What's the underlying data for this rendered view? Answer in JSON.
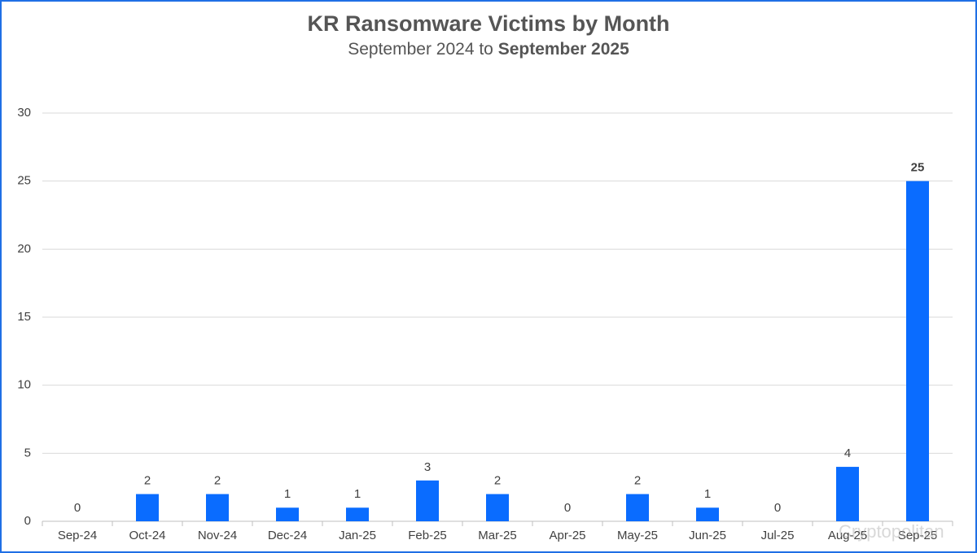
{
  "chart_data": {
    "type": "bar",
    "title": "KR Ransomware Victims by Month",
    "subtitle": [
      "September 2024 to",
      "September 2025"
    ],
    "categories": [
      "Sep-24",
      "Oct-24",
      "Nov-24",
      "Dec-24",
      "Jan-25",
      "Feb-25",
      "Mar-25",
      "Apr-25",
      "May-25",
      "Jun-25",
      "Jul-25",
      "Aug-25",
      "Sep-25"
    ],
    "values": [
      0,
      2,
      2,
      1,
      1,
      3,
      2,
      0,
      2,
      1,
      0,
      4,
      25
    ],
    "color": "#0a6cff",
    "ylim": [
      0,
      30
    ],
    "yticks": [
      0,
      5,
      10,
      15,
      20,
      25,
      30
    ],
    "grid": true,
    "watermark": "Cryptopolitan"
  }
}
